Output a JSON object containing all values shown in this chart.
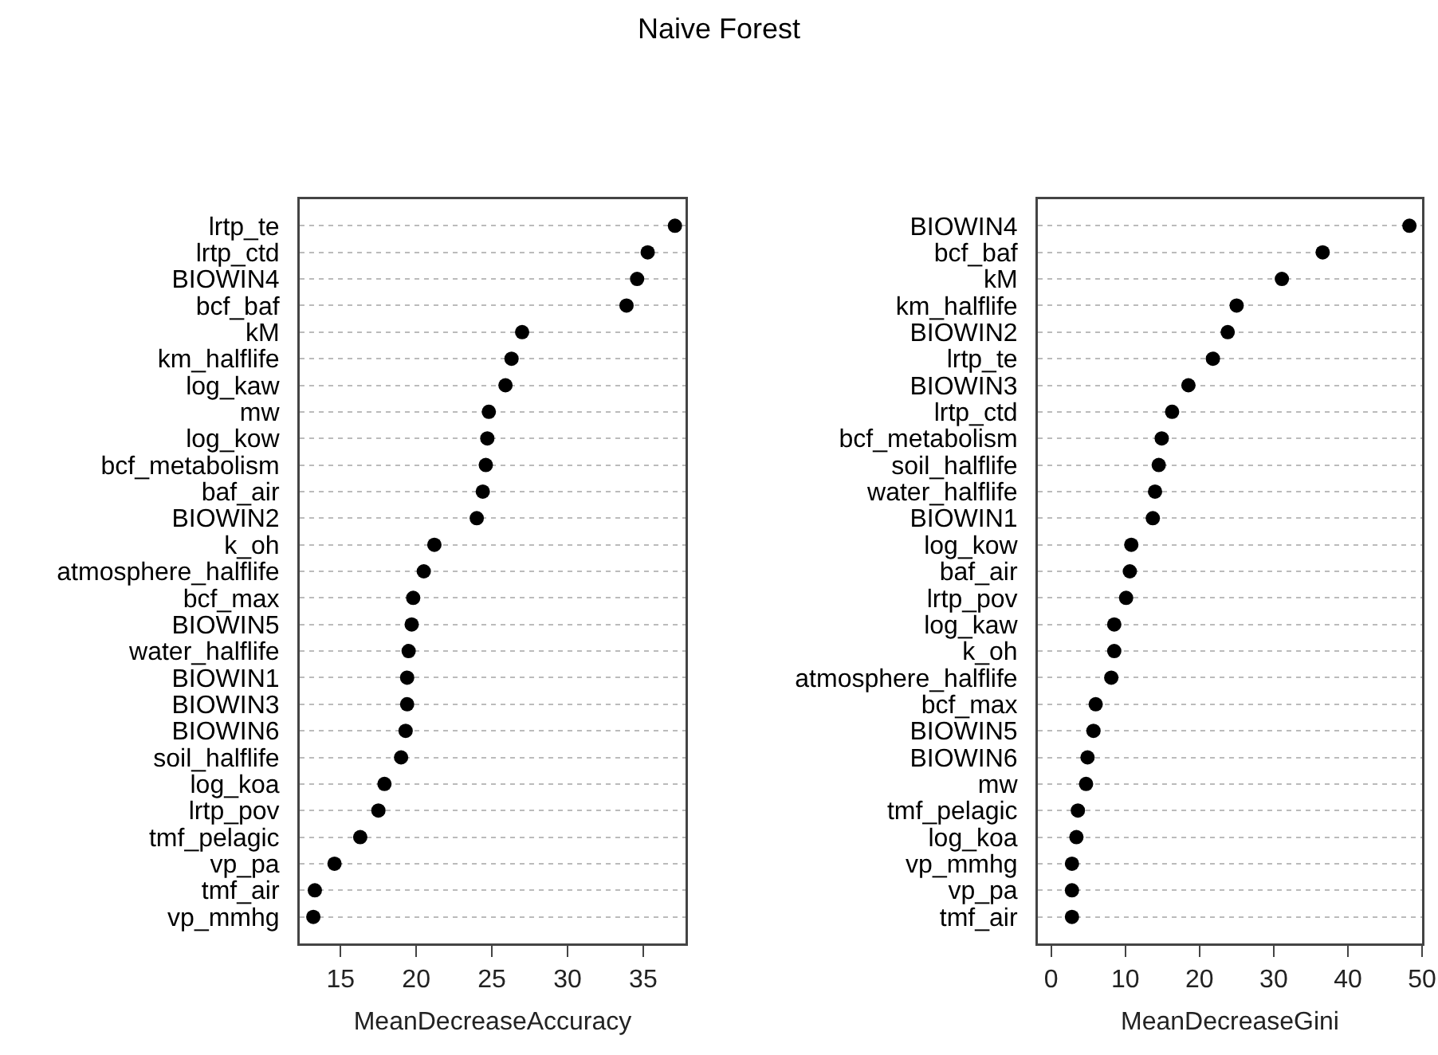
{
  "chart_data": [
    {
      "type": "scatter",
      "title": "Naive Forest",
      "xlabel": "MeanDecreaseAccuracy",
      "orientation": "horizontal",
      "marker": "circle",
      "grid": "y",
      "categories": [
        "lrtp_te",
        "lrtp_ctd",
        "BIOWIN4",
        "bcf_baf",
        "kM",
        "km_halflife",
        "log_kaw",
        "mw",
        "log_kow",
        "bcf_metabolism",
        "baf_air",
        "BIOWIN2",
        "k_oh",
        "atmosphere_halflife",
        "bcf_max",
        "BIOWIN5",
        "water_halflife",
        "BIOWIN1",
        "BIOWIN3",
        "BIOWIN6",
        "soil_halflife",
        "log_koa",
        "lrtp_pov",
        "tmf_pelagic",
        "vp_pa",
        "tmf_air",
        "vp_mmhg"
      ],
      "series": [
        {
          "color": "#000000",
          "values": [
            37.1,
            35.3,
            34.6,
            33.9,
            27.0,
            26.3,
            25.9,
            24.8,
            24.7,
            24.6,
            24.4,
            24.0,
            21.2,
            20.5,
            19.8,
            19.7,
            19.5,
            19.4,
            19.4,
            19.3,
            19.0,
            17.9,
            17.5,
            16.3,
            14.6,
            13.3,
            13.2
          ]
        }
      ],
      "xlim": [
        12.3,
        37.8
      ],
      "xticks": [
        15,
        20,
        25,
        30,
        35
      ]
    },
    {
      "type": "scatter",
      "xlabel": "MeanDecreaseGini",
      "orientation": "horizontal",
      "marker": "circle",
      "grid": "y",
      "categories": [
        "BIOWIN4",
        "bcf_baf",
        "kM",
        "km_halflife",
        "BIOWIN2",
        "lrtp_te",
        "BIOWIN3",
        "lrtp_ctd",
        "bcf_metabolism",
        "soil_halflife",
        "water_halflife",
        "BIOWIN1",
        "log_kow",
        "baf_air",
        "lrtp_pov",
        "log_kaw",
        "k_oh",
        "atmosphere_halflife",
        "bcf_max",
        "BIOWIN5",
        "BIOWIN6",
        "mw",
        "tmf_pelagic",
        "log_koa",
        "vp_mmhg",
        "vp_pa",
        "tmf_air"
      ],
      "series": [
        {
          "color": "#000000",
          "values": [
            48.3,
            36.6,
            31.1,
            25.0,
            23.8,
            21.8,
            18.5,
            16.3,
            14.9,
            14.5,
            14.0,
            13.7,
            10.8,
            10.6,
            10.1,
            8.5,
            8.5,
            8.1,
            6.0,
            5.7,
            4.9,
            4.7,
            3.6,
            3.4,
            2.8,
            2.8,
            2.8
          ]
        }
      ],
      "xlim": [
        -1.8,
        50
      ],
      "xticks": [
        0,
        10,
        20,
        30,
        40,
        50
      ]
    }
  ]
}
